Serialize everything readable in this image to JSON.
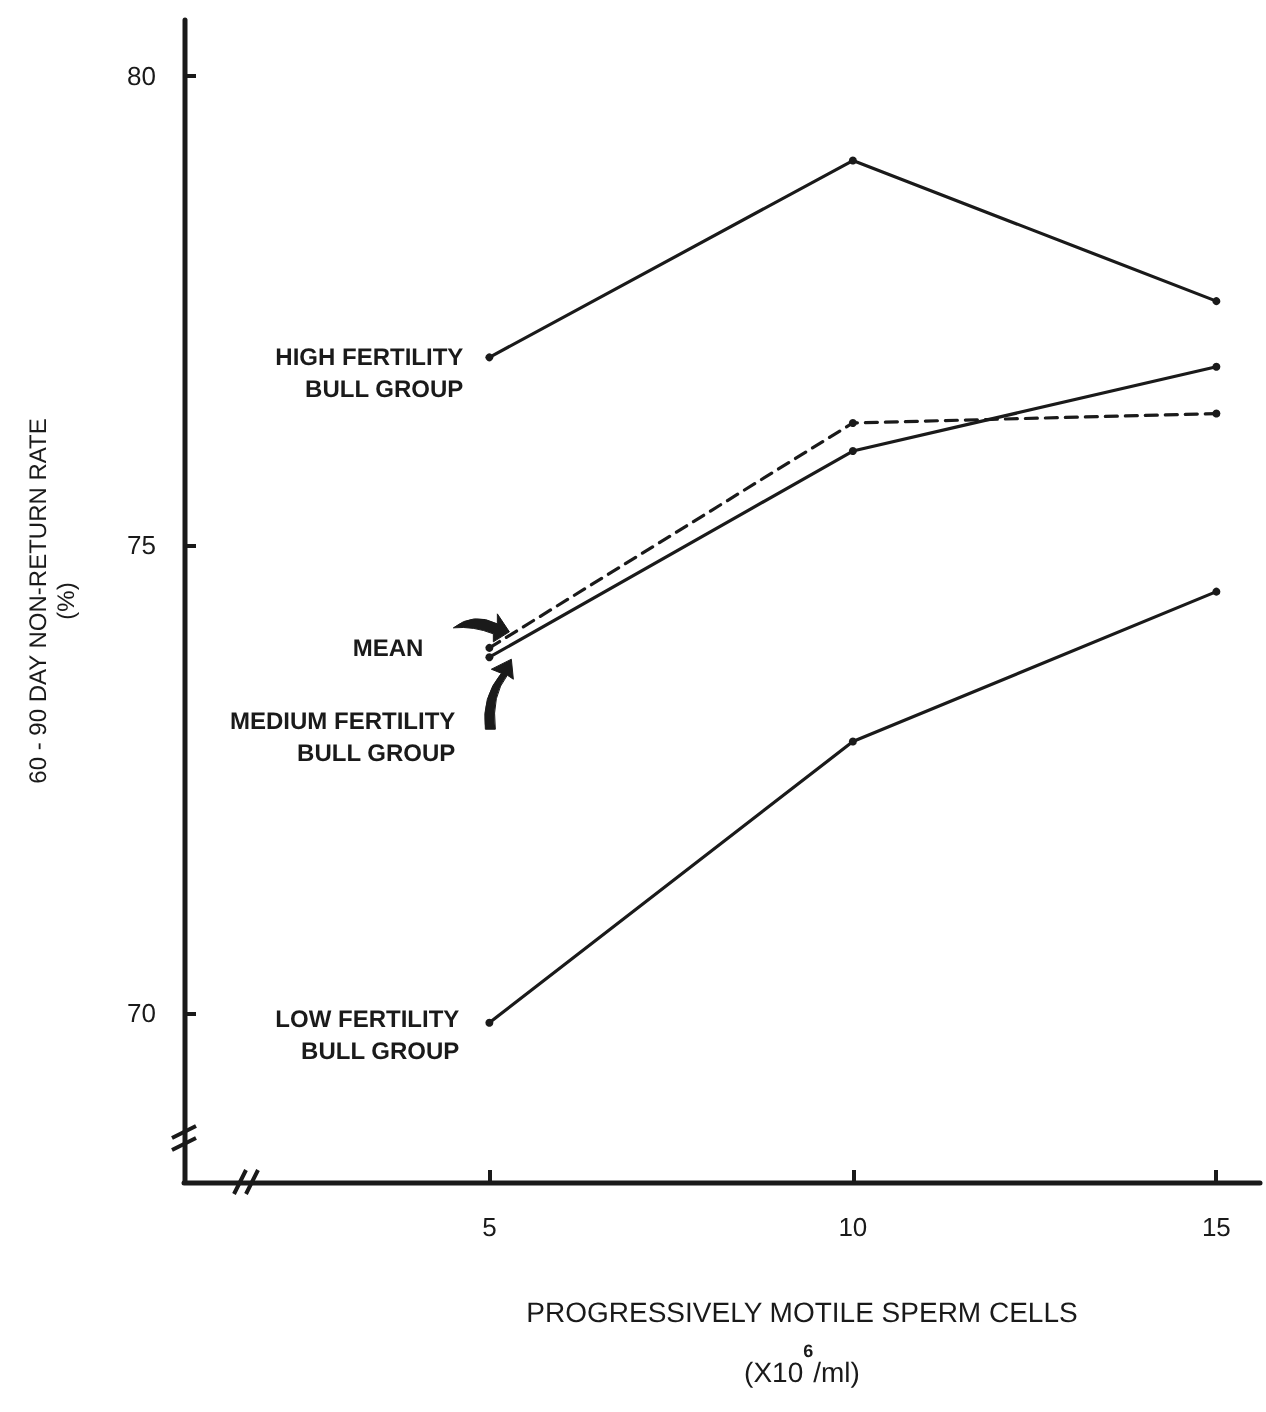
{
  "chart_data": {
    "type": "line",
    "xlabel": "PROGRESSIVELY MOTILE SPERM CELLS\n(X10$^{6}$/ml)",
    "ylabel": "60 - 90 DAY NON-RETURN RATE\n(%)",
    "x": [
      5,
      10,
      15
    ],
    "xlim": [
      0.8,
      15.6
    ],
    "xticks": [
      5,
      10,
      15
    ],
    "ylim": [
      68.2,
      80.6
    ],
    "yticks": [
      70,
      75,
      80
    ],
    "grid": false,
    "legend": false,
    "marker": "circle",
    "series": [
      {
        "name": "HIGH FERTILITY\nBULL GROUP",
        "color": "#1a1a1a",
        "line_style": "solid",
        "values": [
          77.0,
          79.1,
          77.6
        ]
      },
      {
        "name": "MEAN",
        "color": "#1a1a1a",
        "line_style": "dashed",
        "values": [
          73.9,
          76.3,
          76.4
        ]
      },
      {
        "name": "MEDIUM FERTILITY\nBULL GROUP",
        "color": "#1a1a1a",
        "line_style": "solid",
        "values": [
          73.8,
          76.0,
          76.9
        ]
      },
      {
        "name": "LOW FERTILITY\nBULL GROUP",
        "color": "#1a1a1a",
        "line_style": "solid",
        "values": [
          69.9,
          72.9,
          74.5
        ]
      }
    ]
  }
}
